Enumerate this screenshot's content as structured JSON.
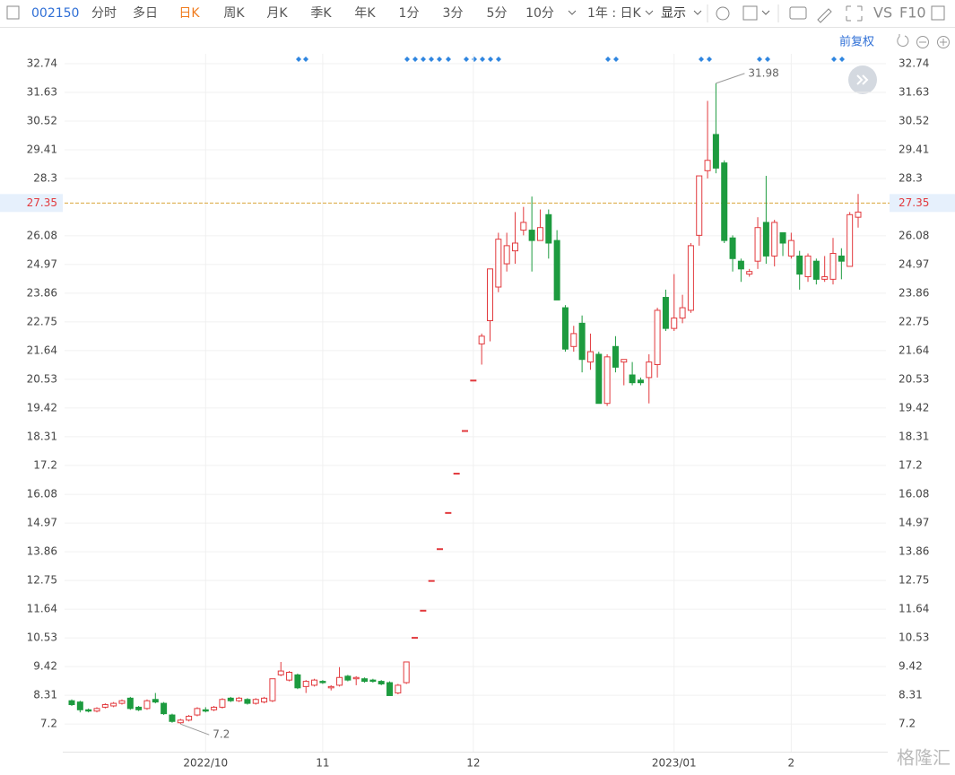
{
  "toolbar": {
    "code": "002150",
    "tabs": [
      "分时",
      "多日",
      "日K",
      "周K",
      "月K",
      "季K",
      "年K",
      "1分",
      "3分",
      "5分",
      "10分"
    ],
    "period": "1年 : 日K",
    "display": "显示",
    "vs": "VS",
    "f10": "F10",
    "adjust": "前复权",
    "watermark": "格隆汇"
  },
  "chart_data": {
    "type": "candlestick",
    "categories": [
      null,
      null,
      null,
      null,
      null,
      null,
      null,
      null,
      null,
      null,
      null,
      null,
      null,
      null,
      null,
      null,
      "2022/10",
      null,
      null,
      null,
      null,
      null,
      null,
      null,
      null,
      null,
      null,
      null,
      null,
      null,
      "11",
      null,
      null,
      null,
      null,
      null,
      null,
      null,
      null,
      null,
      null,
      null,
      null,
      null,
      null,
      null,
      null,
      null,
      "12",
      null,
      null,
      null,
      null,
      null,
      null,
      null,
      null,
      null,
      null,
      null,
      null,
      null,
      null,
      null,
      null,
      null,
      null,
      null,
      null,
      null,
      null,
      null,
      "2023/01",
      null,
      null,
      null,
      null,
      null,
      null,
      null,
      null,
      null,
      null,
      null,
      null,
      null,
      "2",
      null,
      null,
      null,
      null,
      null,
      null,
      null,
      null
    ],
    "open": [
      8.1,
      8.05,
      7.75,
      7.7,
      7.85,
      7.9,
      8.0,
      8.2,
      7.85,
      7.8,
      8.15,
      8.0,
      7.55,
      7.25,
      7.35,
      7.55,
      7.75,
      7.75,
      7.85,
      8.2,
      8.1,
      8.15,
      8.0,
      8.05,
      8.1,
      9.1,
      8.9,
      9.1,
      8.65,
      8.7,
      8.85,
      8.6,
      8.7,
      9.05,
      8.95,
      8.95,
      8.9,
      8.85,
      8.8,
      8.4,
      8.8,
      10.55,
      11.6,
      12.75,
      13.98,
      15.38,
      16.9,
      18.55,
      20.5,
      21.9,
      22.8,
      24.1,
      25.0,
      25.5,
      26.3,
      26.3,
      25.9,
      26.9,
      25.9,
      23.3,
      21.8,
      22.7,
      21.2,
      21.5,
      19.6,
      21.8,
      21.2,
      20.7,
      20.5,
      20.6,
      21.1,
      23.7,
      22.5,
      22.9,
      23.2,
      26.1,
      28.6,
      30.0,
      28.9,
      26.0,
      25.1,
      24.6,
      25.1,
      26.6,
      25.3,
      26.2,
      25.3,
      25.3,
      24.5,
      25.1,
      24.4,
      24.4,
      25.3,
      24.9,
      26.8
    ],
    "high": [
      8.15,
      8.1,
      7.8,
      7.85,
      8.0,
      8.05,
      8.15,
      8.25,
      7.9,
      8.15,
      8.4,
      8.05,
      7.6,
      7.4,
      7.55,
      7.85,
      7.85,
      7.9,
      8.2,
      8.25,
      8.25,
      8.2,
      8.2,
      8.25,
      8.95,
      9.6,
      9.25,
      9.15,
      8.9,
      8.95,
      8.9,
      8.7,
      9.4,
      9.1,
      9.05,
      9.0,
      8.95,
      8.9,
      8.85,
      8.75,
      9.6,
      10.55,
      11.6,
      12.75,
      13.98,
      15.38,
      16.9,
      18.55,
      20.5,
      22.3,
      24.8,
      26.2,
      26.2,
      27.0,
      27.2,
      27.6,
      27.1,
      27.1,
      26.3,
      23.4,
      22.6,
      23.0,
      22.3,
      21.6,
      21.5,
      22.2,
      21.3,
      21.2,
      20.6,
      21.5,
      23.3,
      24.0,
      24.6,
      23.8,
      25.8,
      28.4,
      31.3,
      31.98,
      29.0,
      26.1,
      25.2,
      24.8,
      26.8,
      28.4,
      26.7,
      26.2,
      26.2,
      25.5,
      25.4,
      25.2,
      25.3,
      26.0,
      25.6,
      27.0,
      27.7
    ],
    "low": [
      7.9,
      7.65,
      7.65,
      7.65,
      7.8,
      7.85,
      7.95,
      7.75,
      7.7,
      7.75,
      8.0,
      7.55,
      7.25,
      7.2,
      7.3,
      7.5,
      7.65,
      7.7,
      7.8,
      8.05,
      8.05,
      7.95,
      7.95,
      8.0,
      8.05,
      9.05,
      8.85,
      8.55,
      8.4,
      8.65,
      8.75,
      8.5,
      8.65,
      8.85,
      8.7,
      8.8,
      8.8,
      8.7,
      8.3,
      8.35,
      8.75,
      10.55,
      11.6,
      12.75,
      13.98,
      15.38,
      16.9,
      18.55,
      20.5,
      21.1,
      22.0,
      23.9,
      24.7,
      25.0,
      26.1,
      24.7,
      25.9,
      25.2,
      23.6,
      21.6,
      21.6,
      20.8,
      20.9,
      19.6,
      19.5,
      20.8,
      20.3,
      20.3,
      20.3,
      19.6,
      20.6,
      22.4,
      22.4,
      22.7,
      23.1,
      25.7,
      28.3,
      28.5,
      25.8,
      24.7,
      24.3,
      24.5,
      24.8,
      25.0,
      24.9,
      25.3,
      25.2,
      24.0,
      24.3,
      24.2,
      24.3,
      24.2,
      24.4,
      24.9,
      26.4
    ],
    "close": [
      7.95,
      7.75,
      7.7,
      7.8,
      7.95,
      8.0,
      8.1,
      7.8,
      7.75,
      8.1,
      8.05,
      7.6,
      7.3,
      7.35,
      7.5,
      7.8,
      7.7,
      7.85,
      8.15,
      8.1,
      8.2,
      8.0,
      8.15,
      8.2,
      8.95,
      9.25,
      9.2,
      8.6,
      8.85,
      8.9,
      8.8,
      8.65,
      9.0,
      8.9,
      9.0,
      8.85,
      8.85,
      8.75,
      8.3,
      8.7,
      9.6,
      10.55,
      11.6,
      12.75,
      13.98,
      15.38,
      16.9,
      18.55,
      20.5,
      22.2,
      24.8,
      25.95,
      25.7,
      25.8,
      26.6,
      25.9,
      26.4,
      25.8,
      23.6,
      21.7,
      22.3,
      21.3,
      21.6,
      19.6,
      21.4,
      21.0,
      21.3,
      20.4,
      20.4,
      21.2,
      23.2,
      22.5,
      22.9,
      23.3,
      25.7,
      28.4,
      29.0,
      28.7,
      25.9,
      25.2,
      24.8,
      24.7,
      26.4,
      25.3,
      26.6,
      25.8,
      25.9,
      24.6,
      25.3,
      24.4,
      24.5,
      25.4,
      25.1,
      26.9,
      27.0
    ],
    "up_color": "#e2393d",
    "down_color": "#1d9b3f",
    "ylim": [
      6.13,
      33.12
    ],
    "yticks": [
      7.2,
      8.31,
      9.42,
      10.53,
      11.64,
      12.75,
      13.86,
      14.97,
      16.08,
      17.2,
      18.31,
      19.42,
      20.53,
      21.64,
      22.75,
      23.86,
      24.97,
      26.08,
      28.3,
      29.41,
      30.52,
      31.63,
      32.74
    ],
    "current_price": 27.35,
    "max_label": 31.98,
    "min_label": 7.2,
    "grid": true
  }
}
